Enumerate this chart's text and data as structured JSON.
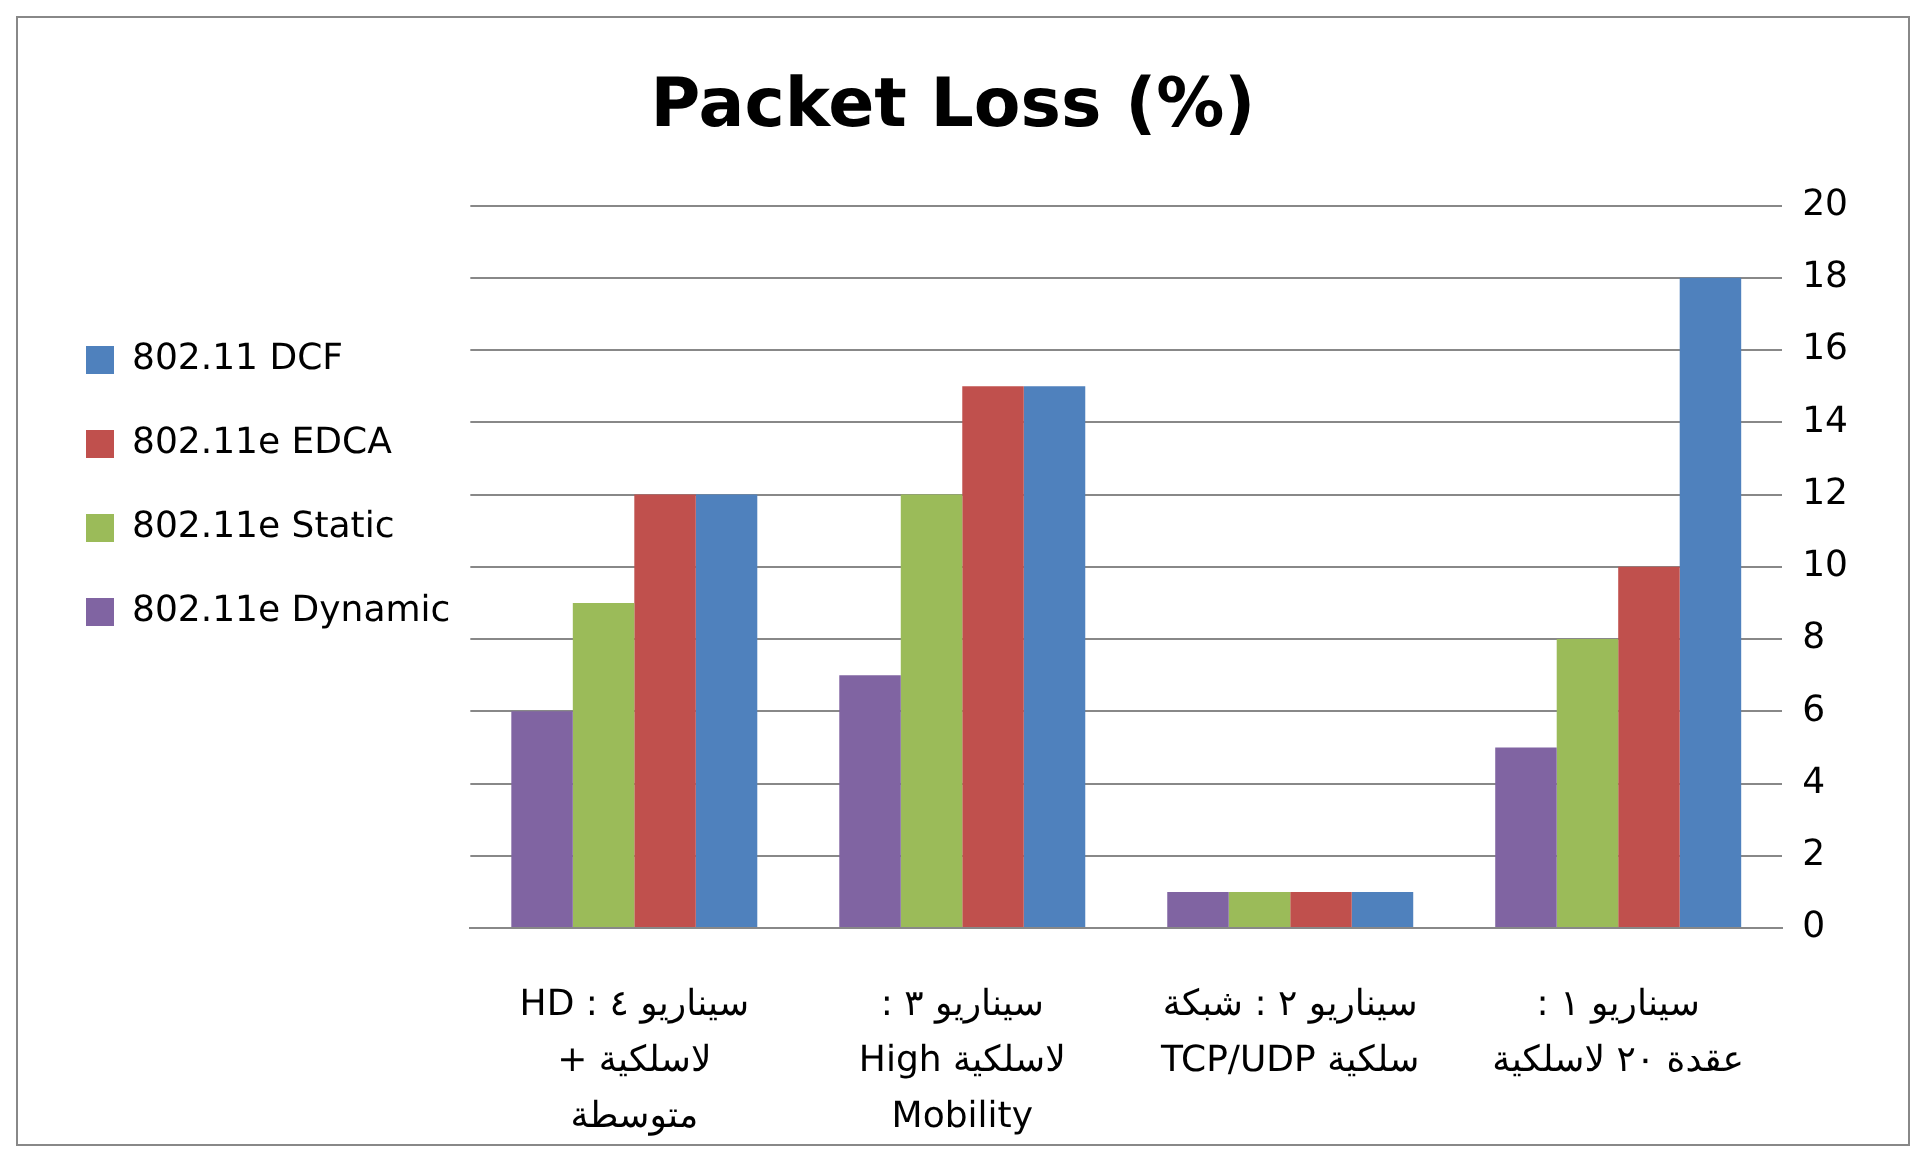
{
  "chart_data": {
    "type": "bar",
    "title": "Packet Loss (%)",
    "categories": [
      "سيناريو ٤ : HD\nلاسلكية +\nمتوسطة",
      "سيناريو ٣ :\nلاسلكية High\nMobility",
      "سيناريو ٢ : شبكة\nسلكية TCP/UDP",
      "سيناريو ١ :\nعقدة ٢٠ لاسلكية"
    ],
    "series": [
      {
        "name": "802.11 DCF",
        "color": "#4f81bd",
        "values": [
          12,
          15,
          1,
          18
        ]
      },
      {
        "name": "802.11e EDCA",
        "color": "#c0504d",
        "values": [
          12,
          15,
          1,
          10
        ]
      },
      {
        "name": "802.11e Static",
        "color": "#9bbb59",
        "values": [
          9,
          12,
          1,
          8
        ]
      },
      {
        "name": "802.11e Dynamic",
        "color": "#8064a2",
        "values": [
          6,
          7,
          1,
          5
        ]
      }
    ],
    "ylim": [
      0,
      20
    ],
    "yticks": [
      0,
      2,
      4,
      6,
      8,
      10,
      12,
      14,
      16,
      18,
      20
    ],
    "grid": "y",
    "legend": "left"
  }
}
